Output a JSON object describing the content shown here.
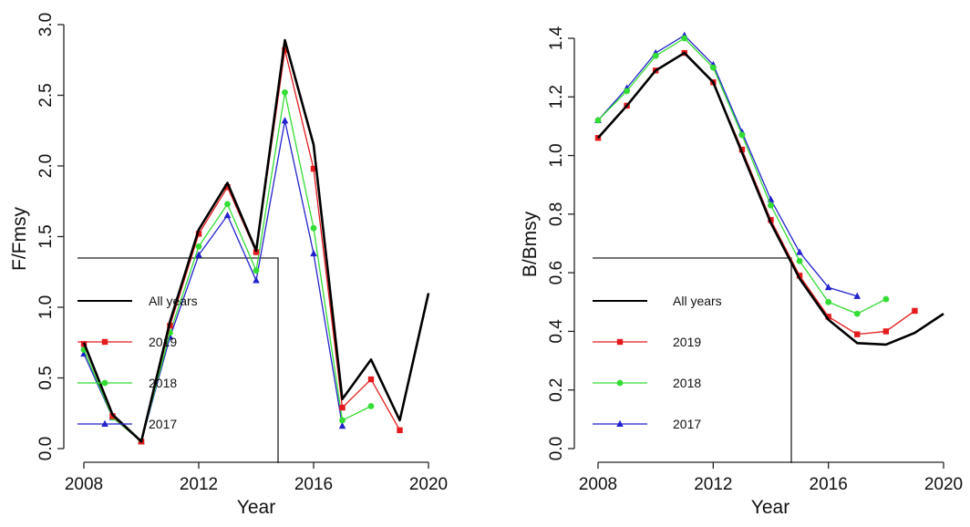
{
  "chart_data": [
    {
      "type": "line",
      "xlabel": "Year",
      "ylabel": "F/Fmsy",
      "xlim": [
        2008,
        2020
      ],
      "ylim": [
        0,
        3.0
      ],
      "x_ticks": [
        "2008",
        "2012",
        "2016",
        "2020"
      ],
      "y_ticks": [
        "0.0",
        "0.5",
        "1.0",
        "1.5",
        "2.0",
        "2.5",
        "3.0"
      ],
      "grid": false,
      "legend_position": "bottom-left",
      "series": [
        {
          "name": "All years",
          "color": "#000000",
          "marker": "none",
          "x": [
            2008,
            2009,
            2010,
            2011,
            2012,
            2013,
            2014,
            2015,
            2016,
            2017,
            2018,
            2019,
            2020
          ],
          "y": [
            0.75,
            0.24,
            0.05,
            0.9,
            1.55,
            1.88,
            1.4,
            2.89,
            2.15,
            0.35,
            0.63,
            0.2,
            1.1
          ]
        },
        {
          "name": "2019",
          "color": "#e41a1c",
          "marker": "square",
          "x": [
            2008,
            2009,
            2010,
            2011,
            2012,
            2013,
            2014,
            2015,
            2016,
            2017,
            2018,
            2019
          ],
          "y": [
            0.74,
            0.23,
            0.05,
            0.87,
            1.52,
            1.85,
            1.39,
            2.82,
            1.98,
            0.29,
            0.49,
            0.13
          ]
        },
        {
          "name": "2018",
          "color": "#33dd33",
          "marker": "circle",
          "x": [
            2008,
            2009,
            2010,
            2011,
            2012,
            2013,
            2014,
            2015,
            2016,
            2017,
            2018
          ],
          "y": [
            0.7,
            0.22,
            0.05,
            0.82,
            1.43,
            1.73,
            1.26,
            2.52,
            1.56,
            0.2,
            0.3
          ]
        },
        {
          "name": "2017",
          "color": "#2222cc",
          "marker": "triangle",
          "x": [
            2008,
            2009,
            2010,
            2011,
            2012,
            2013,
            2014,
            2015,
            2016,
            2017
          ],
          "y": [
            0.67,
            0.22,
            0.05,
            0.79,
            1.37,
            1.65,
            1.19,
            2.32,
            1.38,
            0.16
          ]
        }
      ]
    },
    {
      "type": "line",
      "xlabel": "Year",
      "ylabel": "B/Bmsy",
      "xlim": [
        2008,
        2020
      ],
      "ylim": [
        0,
        1.4
      ],
      "x_ticks": [
        "2008",
        "2012",
        "2016",
        "2020"
      ],
      "y_ticks": [
        "0.0",
        "0.2",
        "0.4",
        "0.6",
        "0.8",
        "1.0",
        "1.2",
        "1.4"
      ],
      "grid": false,
      "legend_position": "bottom-left",
      "series": [
        {
          "name": "All years",
          "color": "#000000",
          "marker": "none",
          "x": [
            2008,
            2009,
            2010,
            2011,
            2012,
            2013,
            2014,
            2015,
            2016,
            2017,
            2018,
            2019,
            2020
          ],
          "y": [
            1.06,
            1.17,
            1.29,
            1.35,
            1.25,
            1.01,
            0.77,
            0.58,
            0.44,
            0.36,
            0.355,
            0.395,
            0.46
          ]
        },
        {
          "name": "2019",
          "color": "#e41a1c",
          "marker": "square",
          "x": [
            2008,
            2009,
            2010,
            2011,
            2012,
            2013,
            2014,
            2015,
            2016,
            2017,
            2018,
            2019
          ],
          "y": [
            1.06,
            1.17,
            1.29,
            1.35,
            1.25,
            1.02,
            0.78,
            0.59,
            0.45,
            0.39,
            0.4,
            0.47
          ]
        },
        {
          "name": "2018",
          "color": "#33dd33",
          "marker": "circle",
          "x": [
            2008,
            2009,
            2010,
            2011,
            2012,
            2013,
            2014,
            2015,
            2016,
            2017,
            2018
          ],
          "y": [
            1.12,
            1.22,
            1.34,
            1.4,
            1.3,
            1.07,
            0.83,
            0.64,
            0.5,
            0.46,
            0.51
          ]
        },
        {
          "name": "2017",
          "color": "#2222cc",
          "marker": "triangle",
          "x": [
            2008,
            2009,
            2010,
            2011,
            2012,
            2013,
            2014,
            2015,
            2016,
            2017
          ],
          "y": [
            1.12,
            1.23,
            1.35,
            1.41,
            1.31,
            1.08,
            0.85,
            0.67,
            0.55,
            0.52
          ]
        }
      ]
    }
  ]
}
